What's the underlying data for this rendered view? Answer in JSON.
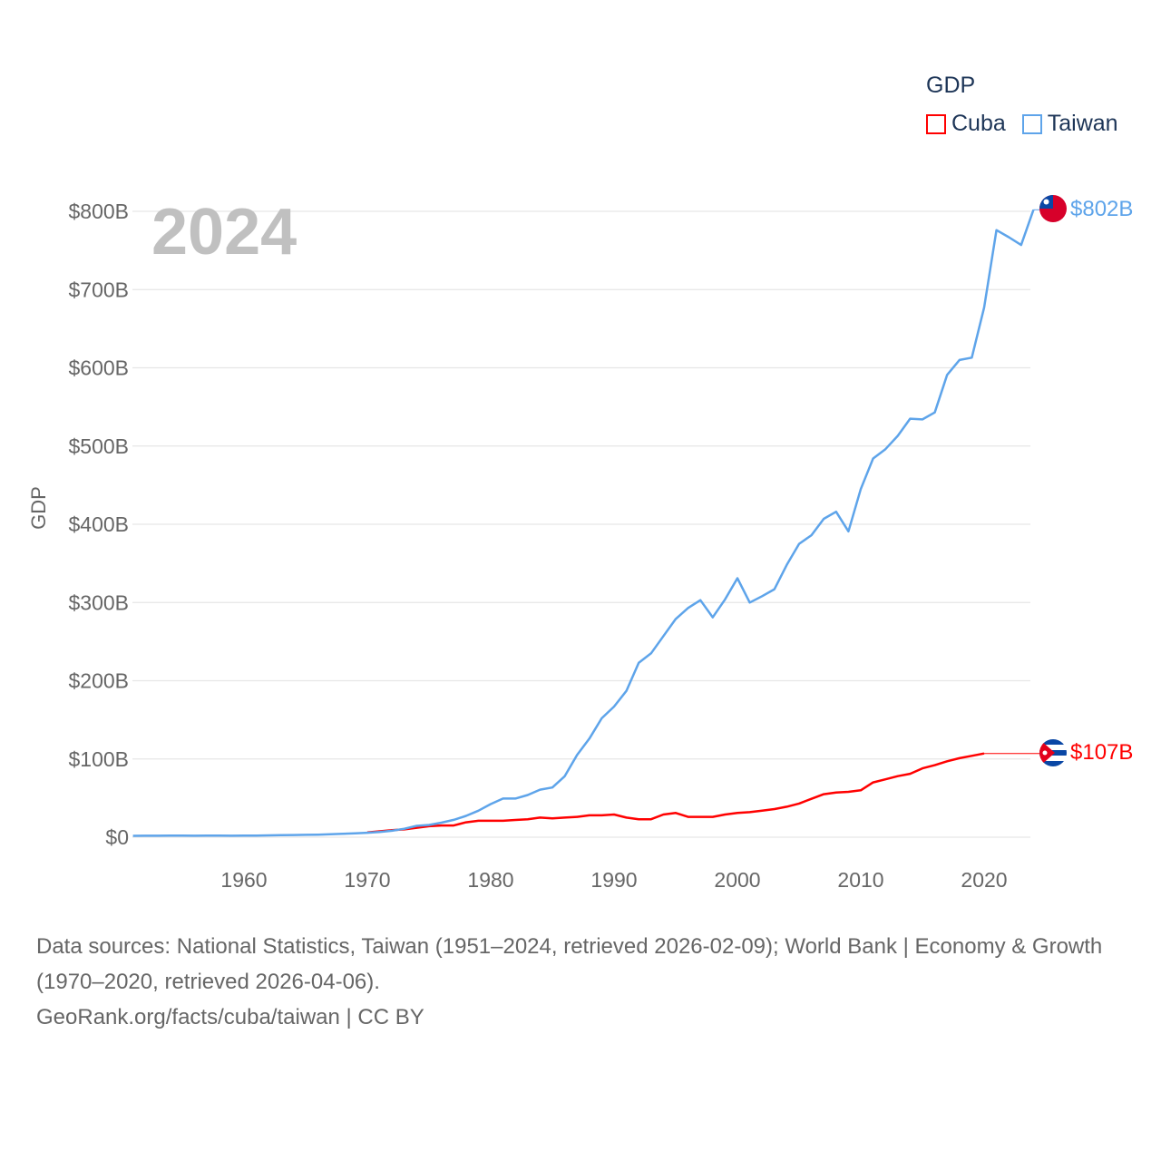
{
  "legend": {
    "title": "GDP",
    "items": [
      {
        "label": "Cuba",
        "color": "#ff0000"
      },
      {
        "label": "Taiwan",
        "color": "#5ea4ea"
      }
    ]
  },
  "year_label": "2024",
  "footer": {
    "line1": "Data sources: National Statistics, Taiwan (1951–2024, retrieved 2026-02-09); World Bank | Economy & Growth (1970–2020, retrieved 2026-04-06).",
    "line2": "GeoRank.org/facts/cuba/taiwan | CC BY"
  },
  "chart_data": {
    "type": "line",
    "title": "",
    "xlabel": "",
    "ylabel": "GDP",
    "xlim": [
      1951,
      2024
    ],
    "ylim": [
      0,
      800
    ],
    "x_ticks": [
      1960,
      1970,
      1980,
      1990,
      2000,
      2010,
      2020
    ],
    "y_ticks": [
      {
        "v": 0,
        "label": "$0"
      },
      {
        "v": 100,
        "label": "$100B"
      },
      {
        "v": 200,
        "label": "$200B"
      },
      {
        "v": 300,
        "label": "$300B"
      },
      {
        "v": 400,
        "label": "$400B"
      },
      {
        "v": 500,
        "label": "$500B"
      },
      {
        "v": 600,
        "label": "$600B"
      },
      {
        "v": 700,
        "label": "$700B"
      },
      {
        "v": 800,
        "label": "$800B"
      }
    ],
    "grid": true,
    "legend_position": "top-right",
    "series": [
      {
        "name": "Taiwan",
        "color": "#5ea4ea",
        "start_year": 1951,
        "end_label": "$802B",
        "values": [
          1.7,
          1.8,
          1.8,
          2,
          2.1,
          1.8,
          2,
          2,
          1.8,
          2,
          2.1,
          2.3,
          2.5,
          2.8,
          3,
          3.3,
          3.8,
          4.3,
          4.9,
          5.7,
          6.7,
          8.2,
          10.8,
          14.5,
          15.7,
          18.6,
          22.1,
          27.3,
          33.8,
          42.3,
          49.4,
          49.4,
          53.9,
          60.8,
          63.5,
          77.9,
          105,
          126,
          152,
          167,
          187,
          223,
          235,
          257,
          279,
          293,
          303,
          281,
          304,
          331,
          300,
          308,
          317,
          348,
          375,
          386,
          407,
          416,
          391,
          445,
          484,
          496,
          513,
          535,
          534,
          543,
          591,
          610,
          613,
          677,
          776,
          767,
          757,
          802
        ]
      },
      {
        "name": "Cuba",
        "color": "#ff0000",
        "start_year": 1970,
        "end_label": "$107B",
        "extend_to": 2024,
        "values": [
          6,
          7.5,
          9,
          10,
          12,
          14,
          15,
          15,
          19,
          21,
          21,
          21,
          22,
          23,
          25,
          24,
          25,
          26,
          28,
          28,
          29,
          25,
          23,
          23,
          29,
          31,
          26,
          26,
          26,
          29,
          31,
          32,
          34,
          36,
          39,
          43,
          49,
          55,
          57,
          58,
          60,
          70,
          74,
          78,
          81,
          88,
          92,
          97,
          101,
          104,
          107
        ]
      }
    ]
  }
}
